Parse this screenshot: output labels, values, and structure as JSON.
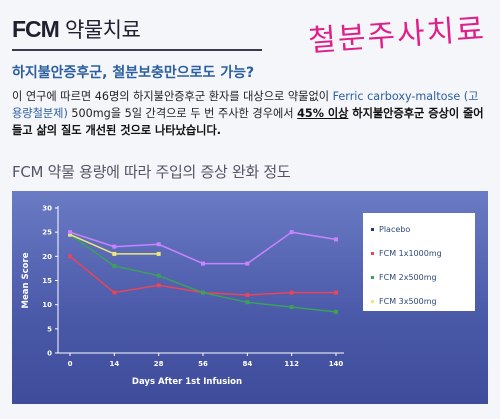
{
  "header": {
    "title_fcm": "FCM",
    "title_rest": "약물치료",
    "handwritten_note": "철분주사치료"
  },
  "subtitle": "하지불안증후군, 철분보충만으로도 가능?",
  "description": {
    "part1": "이 연구에 따르면 46명의 하지불안증후군 환자를 대상으로 약물없이 ",
    "part2_blue": "Ferric carboxy-maltose (고용량철분제)",
    "part3": " 500mg을 5일 간격으로 두 번 주사한 경우에서 ",
    "part4_highlight": "45% 이상",
    "part5_bold": " 하지불안증후군 증상이 줄어들고 삶의 질도 개선된 것으로 나타났습니다."
  },
  "chart_section_title": "FCM 약물 용량에 따라 주입의 증상 완화 정도",
  "chart_data": {
    "type": "line",
    "title": "",
    "xlabel": "Days After 1st Infusion",
    "ylabel": "Mean Score",
    "x": [
      0,
      14,
      28,
      56,
      84,
      112,
      140
    ],
    "xticks": [
      "0",
      "14",
      "28",
      "56",
      "84",
      "112",
      "140"
    ],
    "ylim": [
      0,
      30
    ],
    "yticks": [
      0,
      5,
      10,
      15,
      20,
      25,
      30
    ],
    "grid": false,
    "legend_position": "right",
    "series": [
      {
        "name": "Placebo",
        "color": "#1a3a78",
        "x": [],
        "values": []
      },
      {
        "name": "FCM 1x1000mg",
        "color": "#e8445a",
        "x": [
          0,
          14,
          28,
          56,
          84,
          112,
          140
        ],
        "values": [
          20,
          12.5,
          14,
          12.5,
          12,
          12.5,
          12.5
        ]
      },
      {
        "name": "FCM 2x500mg",
        "color": "#3aa05a",
        "x": [
          0,
          14,
          28,
          56,
          84,
          112,
          140
        ],
        "values": [
          24.5,
          18,
          16,
          12.5,
          10.5,
          9.5,
          8.5
        ]
      },
      {
        "name": "FCM 3x500mg",
        "color": "#ece87a",
        "x": [
          0,
          14,
          28
        ],
        "values": [
          24.5,
          20.5,
          20.5
        ]
      },
      {
        "name": "",
        "color": "#c884ff",
        "x": [
          0,
          14,
          28,
          56,
          84,
          112,
          140
        ],
        "values": [
          25,
          22,
          22.5,
          18.5,
          18.5,
          25,
          23.5
        ]
      }
    ]
  }
}
